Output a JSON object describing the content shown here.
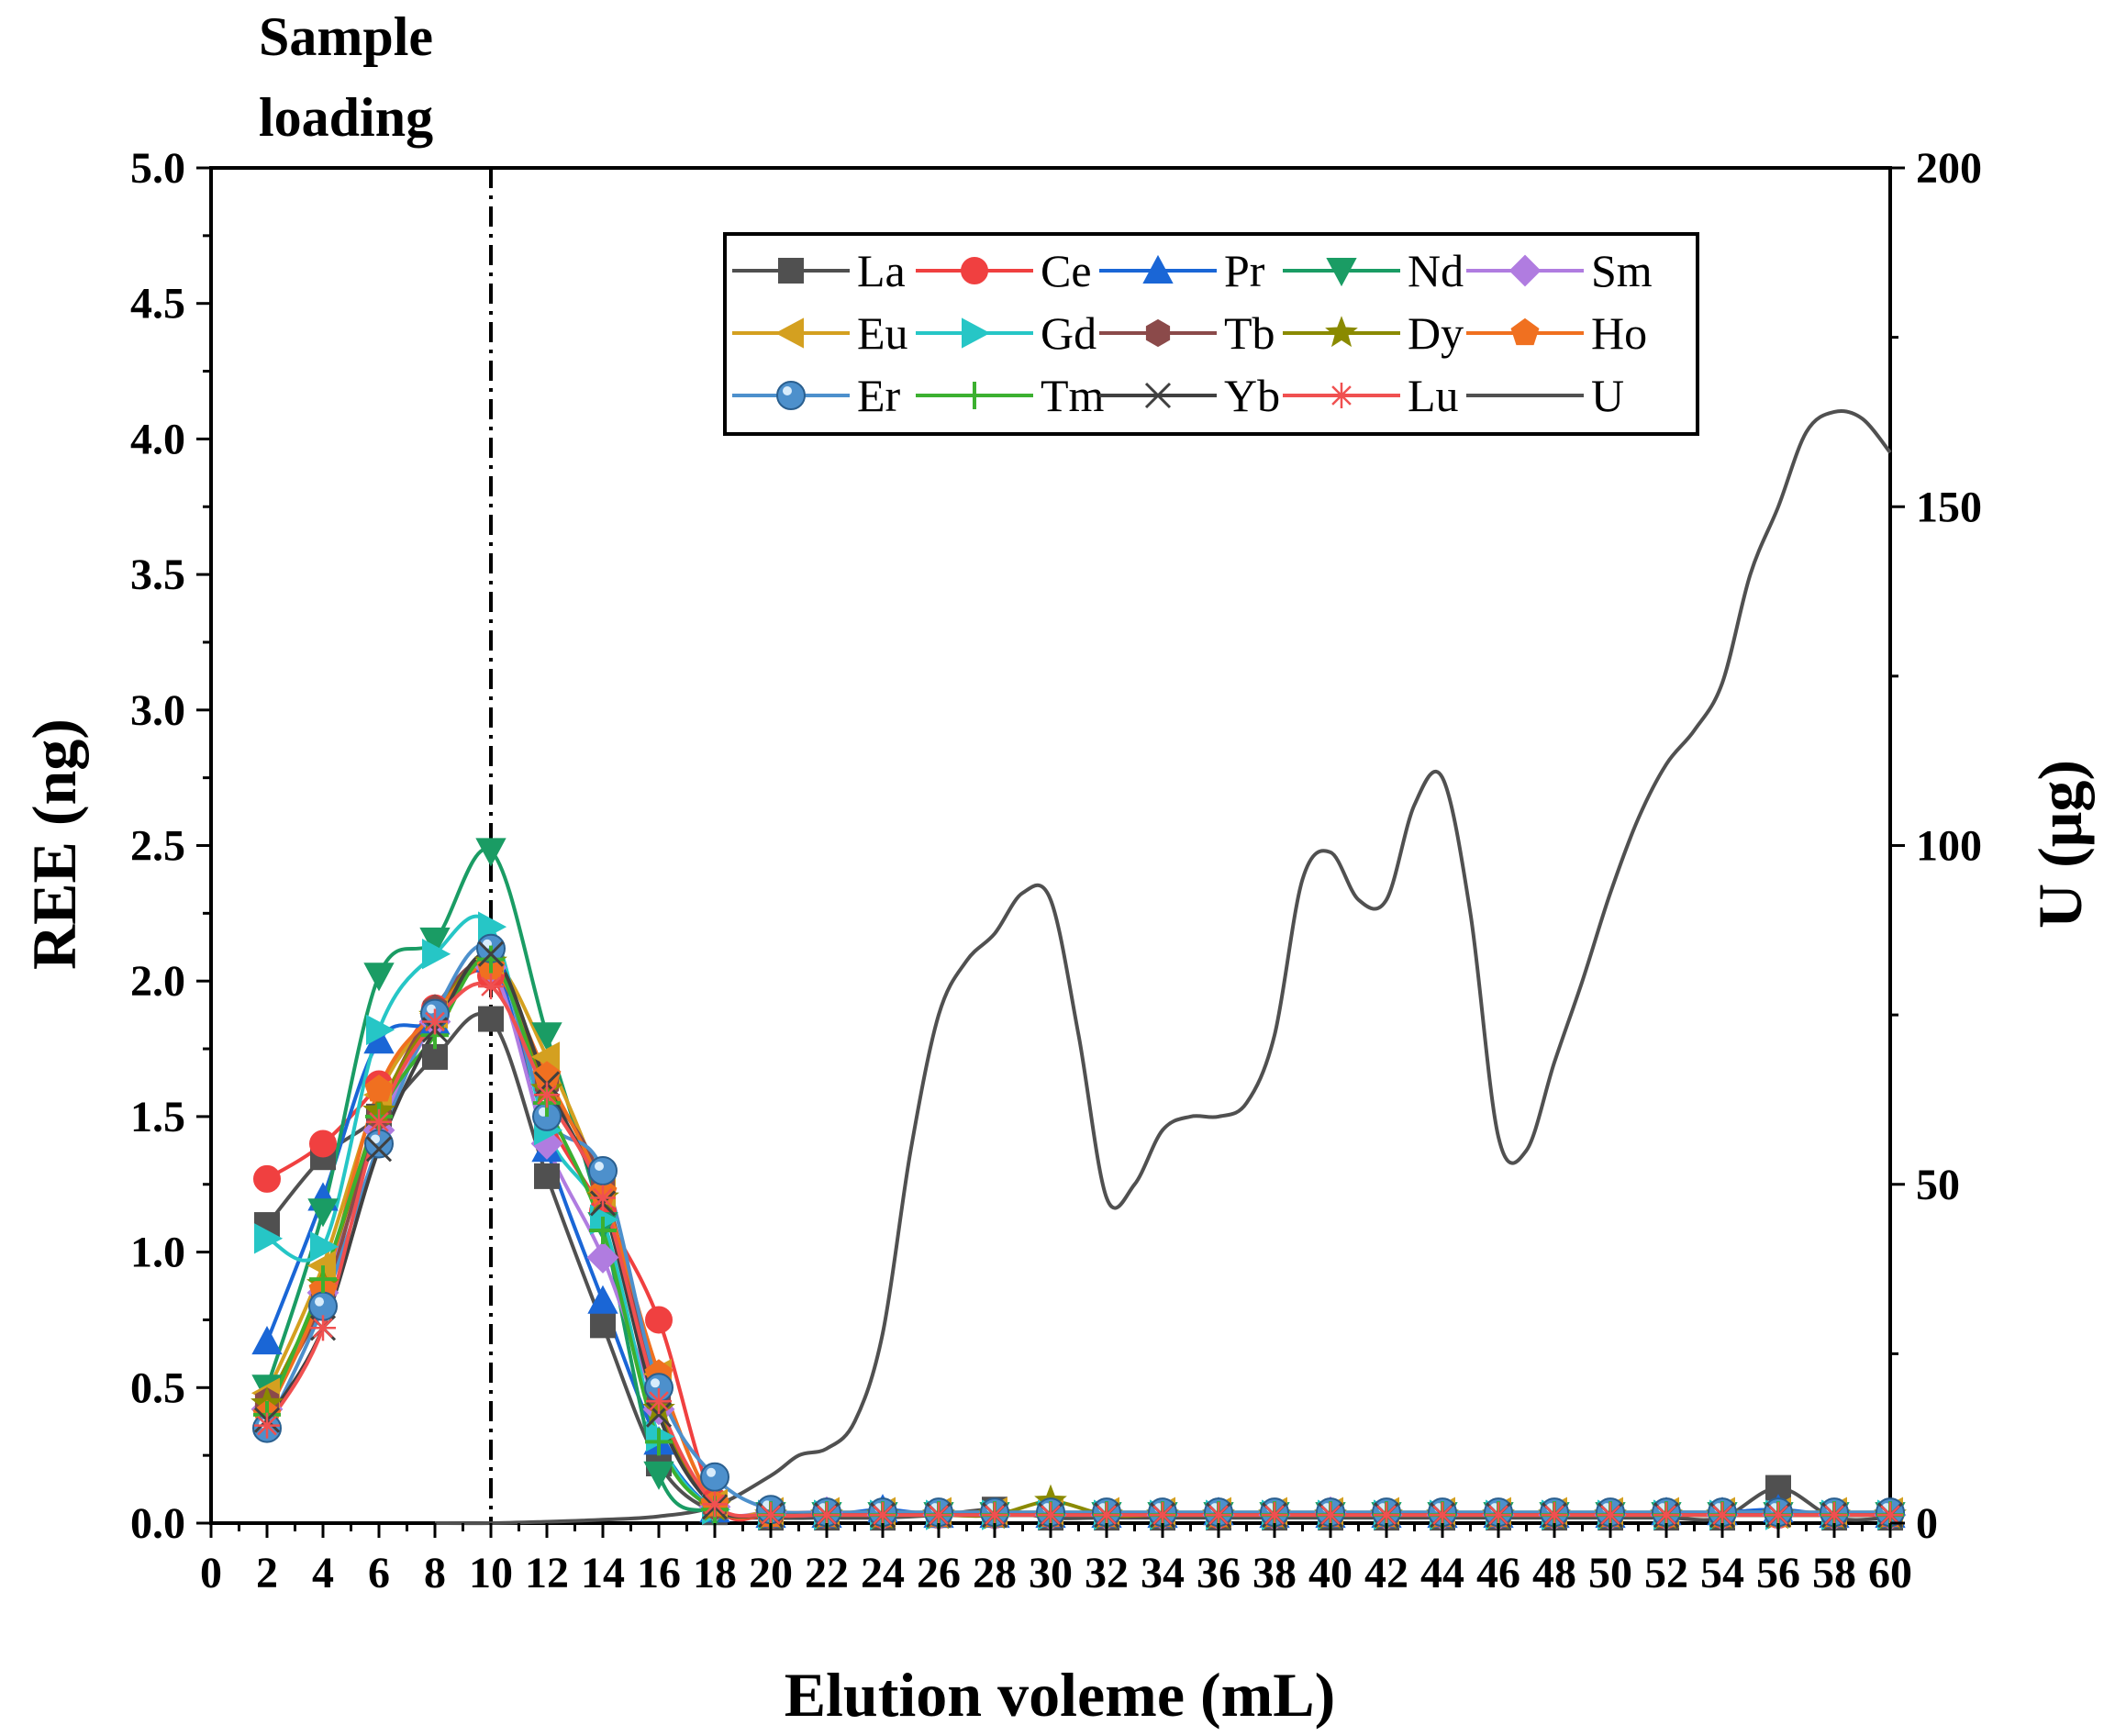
{
  "chart_data": {
    "type": "line",
    "xlabel": "Elution voleme (mL)",
    "ylabel": "REE (ng)",
    "y2label": "U (μg)",
    "annotation": [
      "Sample",
      "loading"
    ],
    "annotation_x": 10,
    "xlim": [
      0,
      60
    ],
    "ylim": [
      0,
      5
    ],
    "y2lim": [
      0,
      200
    ],
    "x_ticks": [
      0,
      2,
      4,
      6,
      8,
      10,
      12,
      14,
      16,
      18,
      20,
      22,
      24,
      26,
      28,
      30,
      32,
      34,
      36,
      38,
      40,
      42,
      44,
      46,
      48,
      50,
      52,
      54,
      56,
      58,
      60
    ],
    "y_ticks": [
      0.0,
      0.5,
      1.0,
      1.5,
      2.0,
      2.5,
      3.0,
      3.5,
      4.0,
      4.5,
      5.0
    ],
    "y_tick_labels": [
      "0.0",
      "0.5",
      "1.0",
      "1.5",
      "2.0",
      "2.5",
      "3.0",
      "3.5",
      "4.0",
      "4.5",
      "5.0"
    ],
    "y2_ticks": [
      0,
      50,
      100,
      150,
      200
    ],
    "legend_position": "top-right",
    "x": [
      2,
      4,
      6,
      8,
      10,
      12,
      14,
      16,
      18,
      20,
      22,
      24,
      26,
      28,
      30,
      32,
      34,
      36,
      38,
      40,
      42,
      44,
      46,
      48,
      50,
      52,
      54,
      56,
      58,
      60
    ],
    "series": [
      {
        "name": "La",
        "color": "#505050",
        "marker": "square",
        "values": [
          1.1,
          1.35,
          1.5,
          1.72,
          1.86,
          1.28,
          0.73,
          0.22,
          0.04,
          0.02,
          0.02,
          0.02,
          0.03,
          0.05,
          0.02,
          0.02,
          0.02,
          0.02,
          0.02,
          0.02,
          0.02,
          0.02,
          0.02,
          0.02,
          0.02,
          0.02,
          0.02,
          0.13,
          0.02,
          0.02
        ]
      },
      {
        "name": "Ce",
        "color": "#f04040",
        "marker": "circle",
        "values": [
          1.27,
          1.4,
          1.62,
          1.9,
          2.02,
          1.5,
          1.15,
          0.75,
          0.08,
          0.03,
          0.03,
          0.03,
          0.03,
          0.03,
          0.03,
          0.03,
          0.03,
          0.03,
          0.03,
          0.04,
          0.03,
          0.03,
          0.03,
          0.03,
          0.03,
          0.03,
          0.03,
          0.03,
          0.03,
          0.03
        ]
      },
      {
        "name": "Pr",
        "color": "#1a66d6",
        "marker": "triangle-up",
        "values": [
          0.67,
          1.2,
          1.78,
          1.85,
          2.08,
          1.38,
          0.82,
          0.3,
          0.05,
          0.03,
          0.03,
          0.05,
          0.03,
          0.03,
          0.03,
          0.03,
          0.03,
          0.04,
          0.03,
          0.03,
          0.03,
          0.03,
          0.03,
          0.03,
          0.03,
          0.04,
          0.04,
          0.05,
          0.03,
          0.03
        ]
      },
      {
        "name": "Nd",
        "color": "#1a9c64",
        "marker": "triangle-down",
        "values": [
          0.5,
          1.15,
          2.02,
          2.15,
          2.48,
          1.8,
          1.1,
          0.18,
          0.04,
          0.03,
          0.03,
          0.03,
          0.03,
          0.03,
          0.03,
          0.03,
          0.03,
          0.03,
          0.03,
          0.03,
          0.03,
          0.03,
          0.03,
          0.03,
          0.03,
          0.03,
          0.03,
          0.03,
          0.03,
          0.03
        ]
      },
      {
        "name": "Sm",
        "color": "#b07ce0",
        "marker": "diamond",
        "values": [
          0.42,
          0.85,
          1.45,
          1.85,
          2.05,
          1.4,
          0.98,
          0.42,
          0.06,
          0.04,
          0.04,
          0.03,
          0.03,
          0.03,
          0.03,
          0.03,
          0.03,
          0.03,
          0.03,
          0.04,
          0.03,
          0.03,
          0.03,
          0.03,
          0.03,
          0.03,
          0.03,
          0.03,
          0.03,
          0.03
        ]
      },
      {
        "name": "Eu",
        "color": "#d4a020",
        "marker": "triangle-left",
        "values": [
          0.48,
          0.95,
          1.58,
          1.88,
          2.08,
          1.72,
          1.22,
          0.55,
          0.07,
          0.04,
          0.04,
          0.04,
          0.04,
          0.04,
          0.04,
          0.04,
          0.04,
          0.04,
          0.04,
          0.04,
          0.04,
          0.04,
          0.04,
          0.04,
          0.04,
          0.04,
          0.04,
          0.04,
          0.04,
          0.04
        ]
      },
      {
        "name": "Gd",
        "color": "#26c6c6",
        "marker": "triangle-right",
        "values": [
          1.05,
          1.02,
          1.82,
          2.1,
          2.2,
          1.45,
          1.12,
          0.32,
          0.05,
          0.03,
          0.03,
          0.03,
          0.03,
          0.03,
          0.03,
          0.03,
          0.03,
          0.03,
          0.03,
          0.03,
          0.03,
          0.03,
          0.03,
          0.03,
          0.03,
          0.03,
          0.03,
          0.03,
          0.03,
          0.03
        ]
      },
      {
        "name": "Tb",
        "color": "#8b4a4a",
        "marker": "hexagon",
        "values": [
          0.45,
          0.82,
          1.5,
          1.9,
          2.06,
          1.62,
          1.25,
          0.45,
          0.06,
          0.03,
          0.03,
          0.03,
          0.03,
          0.03,
          0.03,
          0.03,
          0.03,
          0.03,
          0.03,
          0.03,
          0.03,
          0.03,
          0.03,
          0.03,
          0.03,
          0.03,
          0.03,
          0.03,
          0.03,
          0.03
        ]
      },
      {
        "name": "Dy",
        "color": "#8a8a00",
        "marker": "star",
        "values": [
          0.44,
          0.88,
          1.52,
          1.87,
          2.07,
          1.6,
          1.2,
          0.42,
          0.06,
          0.03,
          0.03,
          0.03,
          0.03,
          0.03,
          0.08,
          0.03,
          0.03,
          0.03,
          0.03,
          0.03,
          0.03,
          0.03,
          0.03,
          0.03,
          0.03,
          0.03,
          0.03,
          0.03,
          0.03,
          0.03
        ]
      },
      {
        "name": "Ho",
        "color": "#f07020",
        "marker": "pentagon",
        "values": [
          0.4,
          0.86,
          1.6,
          1.88,
          2.05,
          1.65,
          1.22,
          0.55,
          0.07,
          0.03,
          0.03,
          0.03,
          0.03,
          0.03,
          0.03,
          0.03,
          0.03,
          0.03,
          0.03,
          0.03,
          0.03,
          0.03,
          0.03,
          0.03,
          0.03,
          0.03,
          0.03,
          0.03,
          0.03,
          0.03
        ]
      },
      {
        "name": "Er",
        "color": "#4d90cc",
        "marker": "sphere",
        "values": [
          0.35,
          0.8,
          1.4,
          1.88,
          2.12,
          1.5,
          1.3,
          0.5,
          0.17,
          0.05,
          0.04,
          0.04,
          0.04,
          0.04,
          0.04,
          0.04,
          0.04,
          0.04,
          0.04,
          0.04,
          0.04,
          0.04,
          0.04,
          0.04,
          0.04,
          0.04,
          0.04,
          0.04,
          0.04,
          0.04
        ]
      },
      {
        "name": "Tm",
        "color": "#3cb030",
        "marker": "plus",
        "values": [
          0.4,
          0.9,
          1.5,
          1.8,
          2.08,
          1.55,
          1.08,
          0.3,
          0.05,
          0.03,
          0.03,
          0.03,
          0.03,
          0.03,
          0.03,
          0.03,
          0.03,
          0.03,
          0.03,
          0.03,
          0.03,
          0.03,
          0.03,
          0.03,
          0.03,
          0.03,
          0.03,
          0.03,
          0.03,
          0.03
        ]
      },
      {
        "name": "Yb",
        "color": "#404040",
        "marker": "x",
        "values": [
          0.38,
          0.72,
          1.38,
          1.82,
          2.1,
          1.62,
          1.18,
          0.4,
          0.06,
          0.03,
          0.03,
          0.03,
          0.03,
          0.03,
          0.03,
          0.03,
          0.03,
          0.03,
          0.03,
          0.03,
          0.03,
          0.03,
          0.03,
          0.03,
          0.03,
          0.03,
          0.03,
          0.03,
          0.03,
          0.03
        ]
      },
      {
        "name": "Lu",
        "color": "#f05050",
        "marker": "asterisk",
        "values": [
          0.36,
          0.72,
          1.48,
          1.85,
          1.98,
          1.58,
          1.2,
          0.45,
          0.07,
          0.03,
          0.03,
          0.03,
          0.03,
          0.03,
          0.03,
          0.03,
          0.03,
          0.03,
          0.03,
          0.03,
          0.03,
          0.03,
          0.03,
          0.03,
          0.03,
          0.03,
          0.03,
          0.03,
          0.03,
          0.03
        ]
      }
    ],
    "u_series": {
      "name": "U",
      "color": "#505050",
      "axis": "right",
      "x": [
        8,
        10,
        12,
        14,
        16,
        18,
        20,
        21,
        22,
        23,
        24,
        25,
        26,
        27,
        28,
        29,
        30,
        31,
        32,
        33,
        34,
        35,
        36,
        37,
        38,
        39,
        40,
        41,
        42,
        43,
        44,
        45,
        46,
        47,
        48,
        49,
        50,
        51,
        52,
        53,
        54,
        55,
        56,
        57,
        58,
        59,
        60
      ],
      "values": [
        0,
        0,
        0.2,
        0.5,
        1,
        2.5,
        7,
        10,
        11,
        15,
        28,
        55,
        75,
        83,
        87,
        93,
        92,
        72,
        48,
        50,
        58,
        60,
        60,
        62,
        72,
        95,
        99,
        92,
        92,
        106,
        110,
        90,
        57,
        55,
        68,
        80,
        93,
        104,
        112,
        117,
        124,
        140,
        150,
        161,
        164,
        163,
        158
      ]
    }
  }
}
